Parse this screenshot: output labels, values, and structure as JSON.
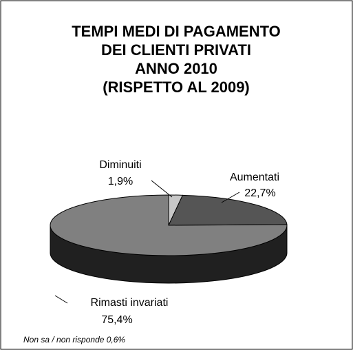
{
  "chart_data": {
    "type": "pie3d",
    "title": [
      "TEMPI MEDI DI PAGAMENTO",
      "DEI CLIENTI PRIVATI",
      "ANNO 2010",
      "(RISPETTO AL 2009)"
    ],
    "categories": [
      "Diminuiti",
      "Aumentati",
      "Rimasti invariati"
    ],
    "values": [
      1.9,
      22.7,
      75.4
    ],
    "value_labels": [
      "1,9%",
      "22,7%",
      "75,4%"
    ],
    "colors": [
      "#c8c8c8",
      "#555555",
      "#808080"
    ],
    "note": "Non sa / non risponde 0,6%"
  }
}
